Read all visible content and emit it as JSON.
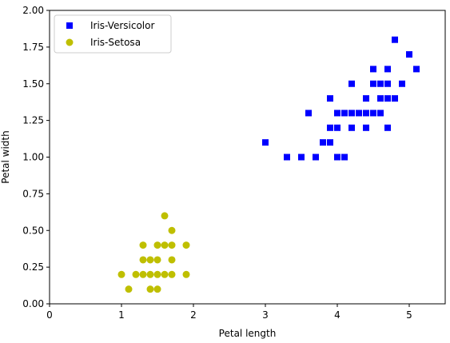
{
  "chart_data": {
    "type": "scatter",
    "xlabel": "Petal length",
    "ylabel": "Petal width",
    "xlim": [
      0,
      5.5
    ],
    "ylim": [
      0,
      2.0
    ],
    "xticks": [
      0,
      1,
      2,
      3,
      4,
      5
    ],
    "xtick_labels": [
      "0",
      "1",
      "2",
      "3",
      "4",
      "5"
    ],
    "yticks": [
      0,
      0.25,
      0.5,
      0.75,
      1.0,
      1.25,
      1.5,
      1.75,
      2.0
    ],
    "ytick_labels": [
      "0.00",
      "0.25",
      "0.50",
      "0.75",
      "1.00",
      "1.25",
      "1.50",
      "1.75",
      "2.00"
    ],
    "grid": false,
    "legend_placement": "top-left",
    "series": [
      {
        "name": "Iris-Versicolor",
        "marker": "square",
        "color": "#0000ff",
        "points": [
          [
            3.0,
            1.1
          ],
          [
            3.3,
            1.0
          ],
          [
            3.5,
            1.0
          ],
          [
            3.6,
            1.3
          ],
          [
            3.7,
            1.0
          ],
          [
            3.8,
            1.1
          ],
          [
            3.9,
            1.1
          ],
          [
            3.9,
            1.2
          ],
          [
            3.9,
            1.4
          ],
          [
            4.0,
            1.0
          ],
          [
            4.0,
            1.2
          ],
          [
            4.0,
            1.3
          ],
          [
            4.1,
            1.0
          ],
          [
            4.1,
            1.3
          ],
          [
            4.2,
            1.2
          ],
          [
            4.2,
            1.3
          ],
          [
            4.2,
            1.5
          ],
          [
            4.3,
            1.3
          ],
          [
            4.4,
            1.2
          ],
          [
            4.4,
            1.3
          ],
          [
            4.4,
            1.4
          ],
          [
            4.5,
            1.3
          ],
          [
            4.5,
            1.5
          ],
          [
            4.5,
            1.6
          ],
          [
            4.6,
            1.3
          ],
          [
            4.6,
            1.4
          ],
          [
            4.6,
            1.5
          ],
          [
            4.7,
            1.2
          ],
          [
            4.7,
            1.4
          ],
          [
            4.7,
            1.5
          ],
          [
            4.7,
            1.6
          ],
          [
            4.8,
            1.4
          ],
          [
            4.8,
            1.8
          ],
          [
            4.9,
            1.5
          ],
          [
            5.0,
            1.7
          ],
          [
            5.1,
            1.6
          ]
        ]
      },
      {
        "name": "Iris-Setosa",
        "marker": "circle",
        "color": "#bfbf00",
        "points": [
          [
            1.0,
            0.2
          ],
          [
            1.1,
            0.1
          ],
          [
            1.2,
            0.2
          ],
          [
            1.3,
            0.2
          ],
          [
            1.3,
            0.3
          ],
          [
            1.3,
            0.4
          ],
          [
            1.4,
            0.1
          ],
          [
            1.4,
            0.2
          ],
          [
            1.4,
            0.3
          ],
          [
            1.5,
            0.1
          ],
          [
            1.5,
            0.2
          ],
          [
            1.5,
            0.3
          ],
          [
            1.5,
            0.4
          ],
          [
            1.6,
            0.2
          ],
          [
            1.6,
            0.4
          ],
          [
            1.6,
            0.6
          ],
          [
            1.7,
            0.2
          ],
          [
            1.7,
            0.3
          ],
          [
            1.7,
            0.4
          ],
          [
            1.7,
            0.5
          ],
          [
            1.9,
            0.2
          ],
          [
            1.9,
            0.4
          ]
        ]
      }
    ]
  }
}
